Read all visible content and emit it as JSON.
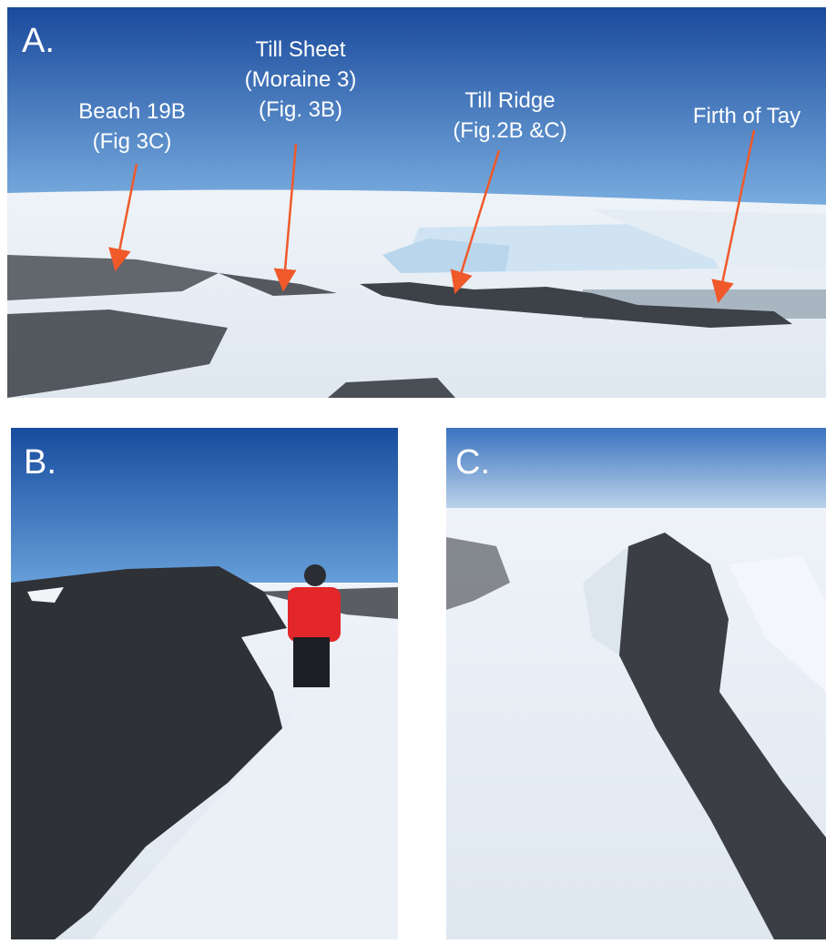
{
  "panels": [
    {
      "label": "A.",
      "annotations": [
        {
          "lines": [
            "Beach 19B",
            "(Fig 3C)"
          ]
        },
        {
          "lines": [
            "Till Sheet",
            "(Moraine 3)",
            "(Fig. 3B)"
          ]
        },
        {
          "lines": [
            "Till Ridge",
            "(Fig.2B &C)"
          ]
        },
        {
          "lines": [
            "Firth of Tay"
          ]
        }
      ]
    },
    {
      "label": "B."
    },
    {
      "label": "C."
    }
  ]
}
